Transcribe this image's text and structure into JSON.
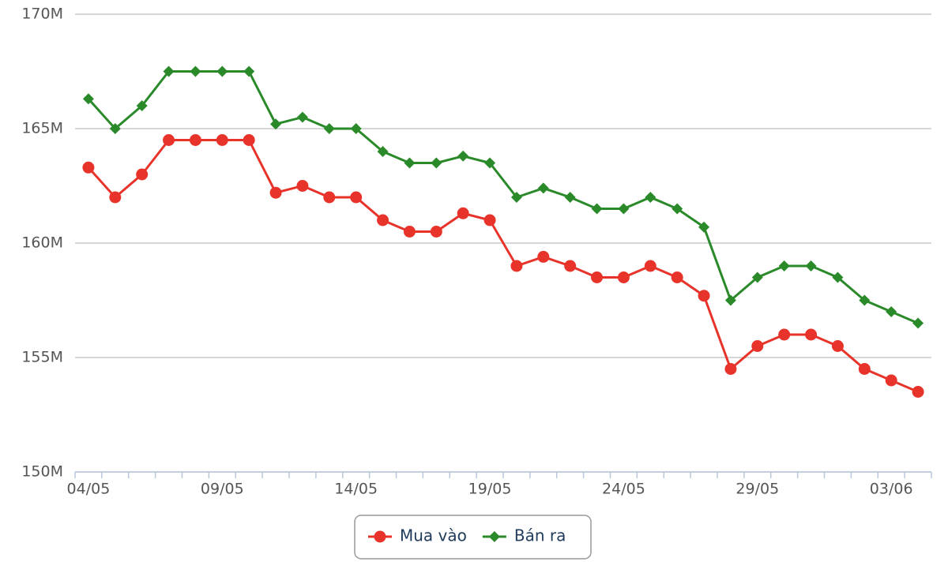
{
  "chart_data": {
    "type": "line",
    "categories": [
      "04/05",
      null,
      null,
      null,
      null,
      "09/05",
      null,
      null,
      null,
      null,
      "14/05",
      null,
      null,
      null,
      null,
      "19/05",
      null,
      null,
      null,
      null,
      "24/05",
      null,
      null,
      null,
      null,
      "29/05",
      null,
      null,
      null,
      null,
      "03/06",
      null
    ],
    "series": [
      {
        "name": "Mua vào",
        "color": "#e8332a",
        "marker": "circle",
        "values": [
          163300000,
          162000000,
          163000000,
          164500000,
          164500000,
          164500000,
          164500000,
          162200000,
          162500000,
          162000000,
          162000000,
          161000000,
          160500000,
          160500000,
          161300000,
          161000000,
          159000000,
          159400000,
          159000000,
          158500000,
          158500000,
          159000000,
          158500000,
          157700000,
          154500000,
          155500000,
          156000000,
          156000000,
          155500000,
          154500000,
          154000000,
          153500000
        ]
      },
      {
        "name": "Bán ra",
        "color": "#2a8a2a",
        "marker": "diamond",
        "values": [
          166300000,
          165000000,
          166000000,
          167500000,
          167500000,
          167500000,
          167500000,
          165200000,
          165500000,
          165000000,
          165000000,
          164000000,
          163500000,
          163500000,
          163800000,
          163500000,
          162000000,
          162400000,
          162000000,
          161500000,
          161500000,
          162000000,
          161500000,
          160700000,
          157500000,
          158500000,
          159000000,
          159000000,
          158500000,
          157500000,
          157000000,
          156500000
        ]
      }
    ],
    "ylim": [
      150000000,
      170000000
    ],
    "yticks": [
      {
        "value": 150000000,
        "label": "150M"
      },
      {
        "value": 155000000,
        "label": "155M"
      },
      {
        "value": 160000000,
        "label": "160M"
      },
      {
        "value": 165000000,
        "label": "165M"
      },
      {
        "value": 170000000,
        "label": "170M"
      }
    ],
    "grid": true,
    "legend": "bottom"
  }
}
